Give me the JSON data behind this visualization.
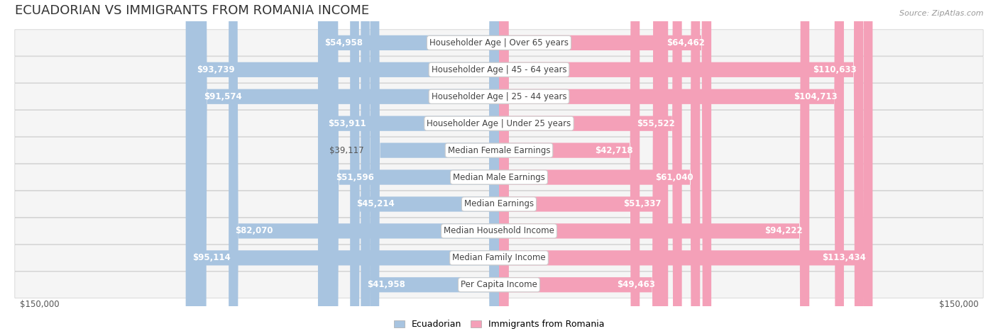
{
  "title": "ECUADORIAN VS IMMIGRANTS FROM ROMANIA INCOME",
  "source": "Source: ZipAtlas.com",
  "categories": [
    "Per Capita Income",
    "Median Family Income",
    "Median Household Income",
    "Median Earnings",
    "Median Male Earnings",
    "Median Female Earnings",
    "Householder Age | Under 25 years",
    "Householder Age | 25 - 44 years",
    "Householder Age | 45 - 64 years",
    "Householder Age | Over 65 years"
  ],
  "ecuadorian": [
    41958,
    95114,
    82070,
    45214,
    51596,
    39117,
    53911,
    91574,
    93739,
    54958
  ],
  "romania": [
    49463,
    113434,
    94222,
    51337,
    61040,
    42718,
    55522,
    104713,
    110633,
    64462
  ],
  "max_val": 150000,
  "blue_color": "#a8c4e0",
  "pink_color": "#f4a0b8",
  "blue_dark": "#6fa8d4",
  "pink_dark": "#f06090",
  "label_blue": "Ecuadorian",
  "label_pink": "Immigrants from Romania",
  "bg_row_color": "#f0f0f0",
  "bar_height": 0.55,
  "title_fontsize": 13,
  "label_fontsize": 8.5,
  "value_fontsize": 8.5,
  "axis_label": "$150,000"
}
